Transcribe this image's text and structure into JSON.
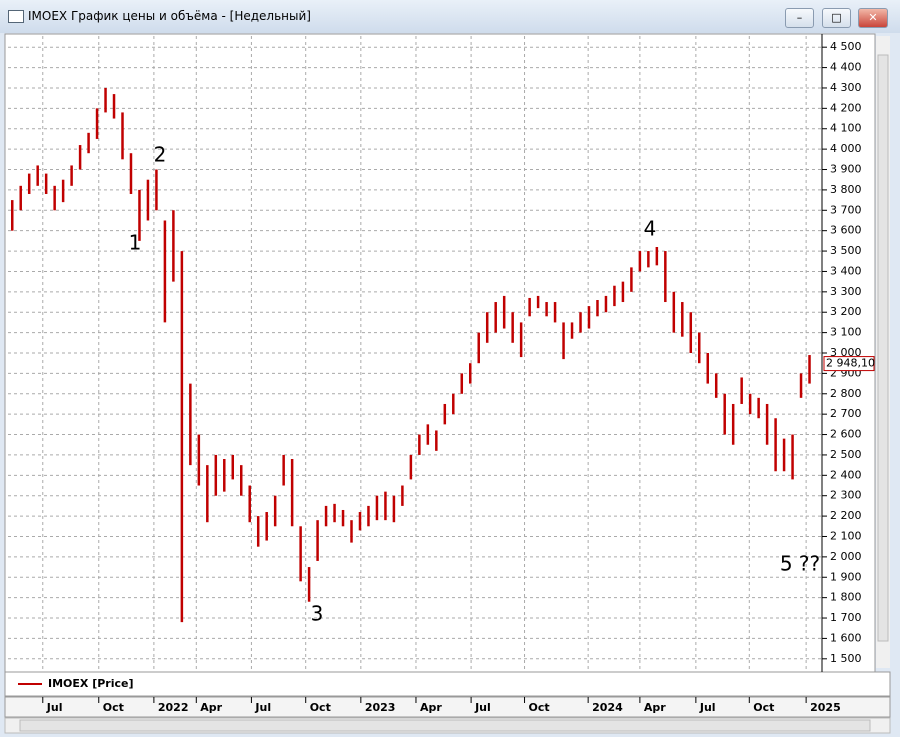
{
  "window_title": "IMOEX График цены и объёма - [Недельный]",
  "chart_data": {
    "type": "ohlc",
    "series": [
      {
        "name": "IMOEX [Price]",
        "color": "#c00000",
        "high": [
          3750,
          3820,
          3880,
          3920,
          3880,
          3820,
          3850,
          3920,
          4020,
          4080,
          4200,
          4300,
          4270,
          4180,
          3980,
          3800,
          3850,
          3900,
          3650,
          3700,
          3500,
          2850,
          2600,
          2450,
          2500,
          2480,
          2500,
          2450,
          2350,
          2200,
          2220,
          2300,
          2500,
          2480,
          2150,
          1950,
          2180,
          2250,
          2260,
          2230,
          2180,
          2220,
          2250,
          2300,
          2320,
          2300,
          2350,
          2500,
          2600,
          2650,
          2620,
          2750,
          2800,
          2900,
          2950,
          3100,
          3200,
          3250,
          3280,
          3200,
          3150,
          3270,
          3280,
          3250,
          3250,
          3150,
          3150,
          3200,
          3230,
          3260,
          3280,
          3330,
          3350,
          3420,
          3500,
          3500,
          3520,
          3500,
          3300,
          3250,
          3200,
          3100,
          3000,
          2900,
          2800,
          2750,
          2880,
          2800,
          2780,
          2750,
          2680,
          2580,
          2600,
          2900,
          2990
        ],
        "low": [
          3600,
          3700,
          3780,
          3820,
          3780,
          3700,
          3740,
          3820,
          3900,
          3980,
          4050,
          4180,
          4150,
          3950,
          3780,
          3550,
          3650,
          3700,
          3150,
          3350,
          1680,
          2450,
          2350,
          2170,
          2300,
          2320,
          2380,
          2300,
          2170,
          2050,
          2080,
          2150,
          2350,
          2150,
          1880,
          1780,
          1980,
          2150,
          2170,
          2150,
          2070,
          2130,
          2150,
          2180,
          2180,
          2170,
          2250,
          2380,
          2500,
          2550,
          2520,
          2650,
          2700,
          2800,
          2850,
          2950,
          3050,
          3100,
          3120,
          3050,
          2980,
          3180,
          3220,
          3180,
          3150,
          2970,
          3070,
          3100,
          3120,
          3180,
          3200,
          3230,
          3250,
          3300,
          3400,
          3420,
          3430,
          3250,
          3100,
          3080,
          3000,
          2950,
          2850,
          2780,
          2600,
          2550,
          2750,
          2700,
          2680,
          2550,
          2420,
          2420,
          2380,
          2780,
          2850
        ]
      }
    ],
    "last_price": {
      "value": 2948.1,
      "label": "2 948,10"
    },
    "annotations": [
      "1",
      "2",
      "3",
      "4",
      "5 ??"
    ],
    "xlim": [
      -0.5,
      95
    ],
    "xticks": [
      {
        "value": 3.6,
        "label": "Jul"
      },
      {
        "value": 10.2,
        "label": "Oct"
      },
      {
        "value": 16.7,
        "label": "2022"
      },
      {
        "value": 21.7,
        "label": "Apr"
      },
      {
        "value": 28.2,
        "label": "Jul"
      },
      {
        "value": 34.6,
        "label": "Oct"
      },
      {
        "value": 41.1,
        "label": "2023"
      },
      {
        "value": 47.6,
        "label": "Apr"
      },
      {
        "value": 54.1,
        "label": "Jul"
      },
      {
        "value": 60.4,
        "label": "Oct"
      },
      {
        "value": 67.9,
        "label": "2024"
      },
      {
        "value": 74.0,
        "label": "Apr"
      },
      {
        "value": 80.6,
        "label": "Jul"
      },
      {
        "value": 86.9,
        "label": "Oct"
      },
      {
        "value": 93.6,
        "label": "2025"
      }
    ],
    "ylim": [
      1450,
      4550
    ],
    "yticks": [
      {
        "value": 1500,
        "label": "1 500"
      },
      {
        "value": 1600,
        "label": "1 600"
      },
      {
        "value": 1700,
        "label": "1 700"
      },
      {
        "value": 1800,
        "label": "1 800"
      },
      {
        "value": 1900,
        "label": "1 900"
      },
      {
        "value": 2000,
        "label": "2 000"
      },
      {
        "value": 2100,
        "label": "2 100"
      },
      {
        "value": 2200,
        "label": "2 200"
      },
      {
        "value": 2300,
        "label": "2 300"
      },
      {
        "value": 2400,
        "label": "2 400"
      },
      {
        "value": 2500,
        "label": "2 500"
      },
      {
        "value": 2600,
        "label": "2 600"
      },
      {
        "value": 2700,
        "label": "2 700"
      },
      {
        "value": 2800,
        "label": "2 800"
      },
      {
        "value": 2900,
        "label": "2 900"
      },
      {
        "value": 3000,
        "label": "3 000"
      },
      {
        "value": 3100,
        "label": "3 100"
      },
      {
        "value": 3200,
        "label": "3 200"
      },
      {
        "value": 3300,
        "label": "3 300"
      },
      {
        "value": 3400,
        "label": "3 400"
      },
      {
        "value": 3500,
        "label": "3 500"
      },
      {
        "value": 3600,
        "label": "3 600"
      },
      {
        "value": 3700,
        "label": "3 700"
      },
      {
        "value": 3800,
        "label": "3 800"
      },
      {
        "value": 3900,
        "label": "3 900"
      },
      {
        "value": 4000,
        "label": "4 000"
      },
      {
        "value": 4100,
        "label": "4 100"
      },
      {
        "value": 4200,
        "label": "4 200"
      },
      {
        "value": 4300,
        "label": "4 300"
      },
      {
        "value": 4400,
        "label": "4 400"
      },
      {
        "value": 4500,
        "label": "4 500"
      }
    ],
    "grid": true
  }
}
